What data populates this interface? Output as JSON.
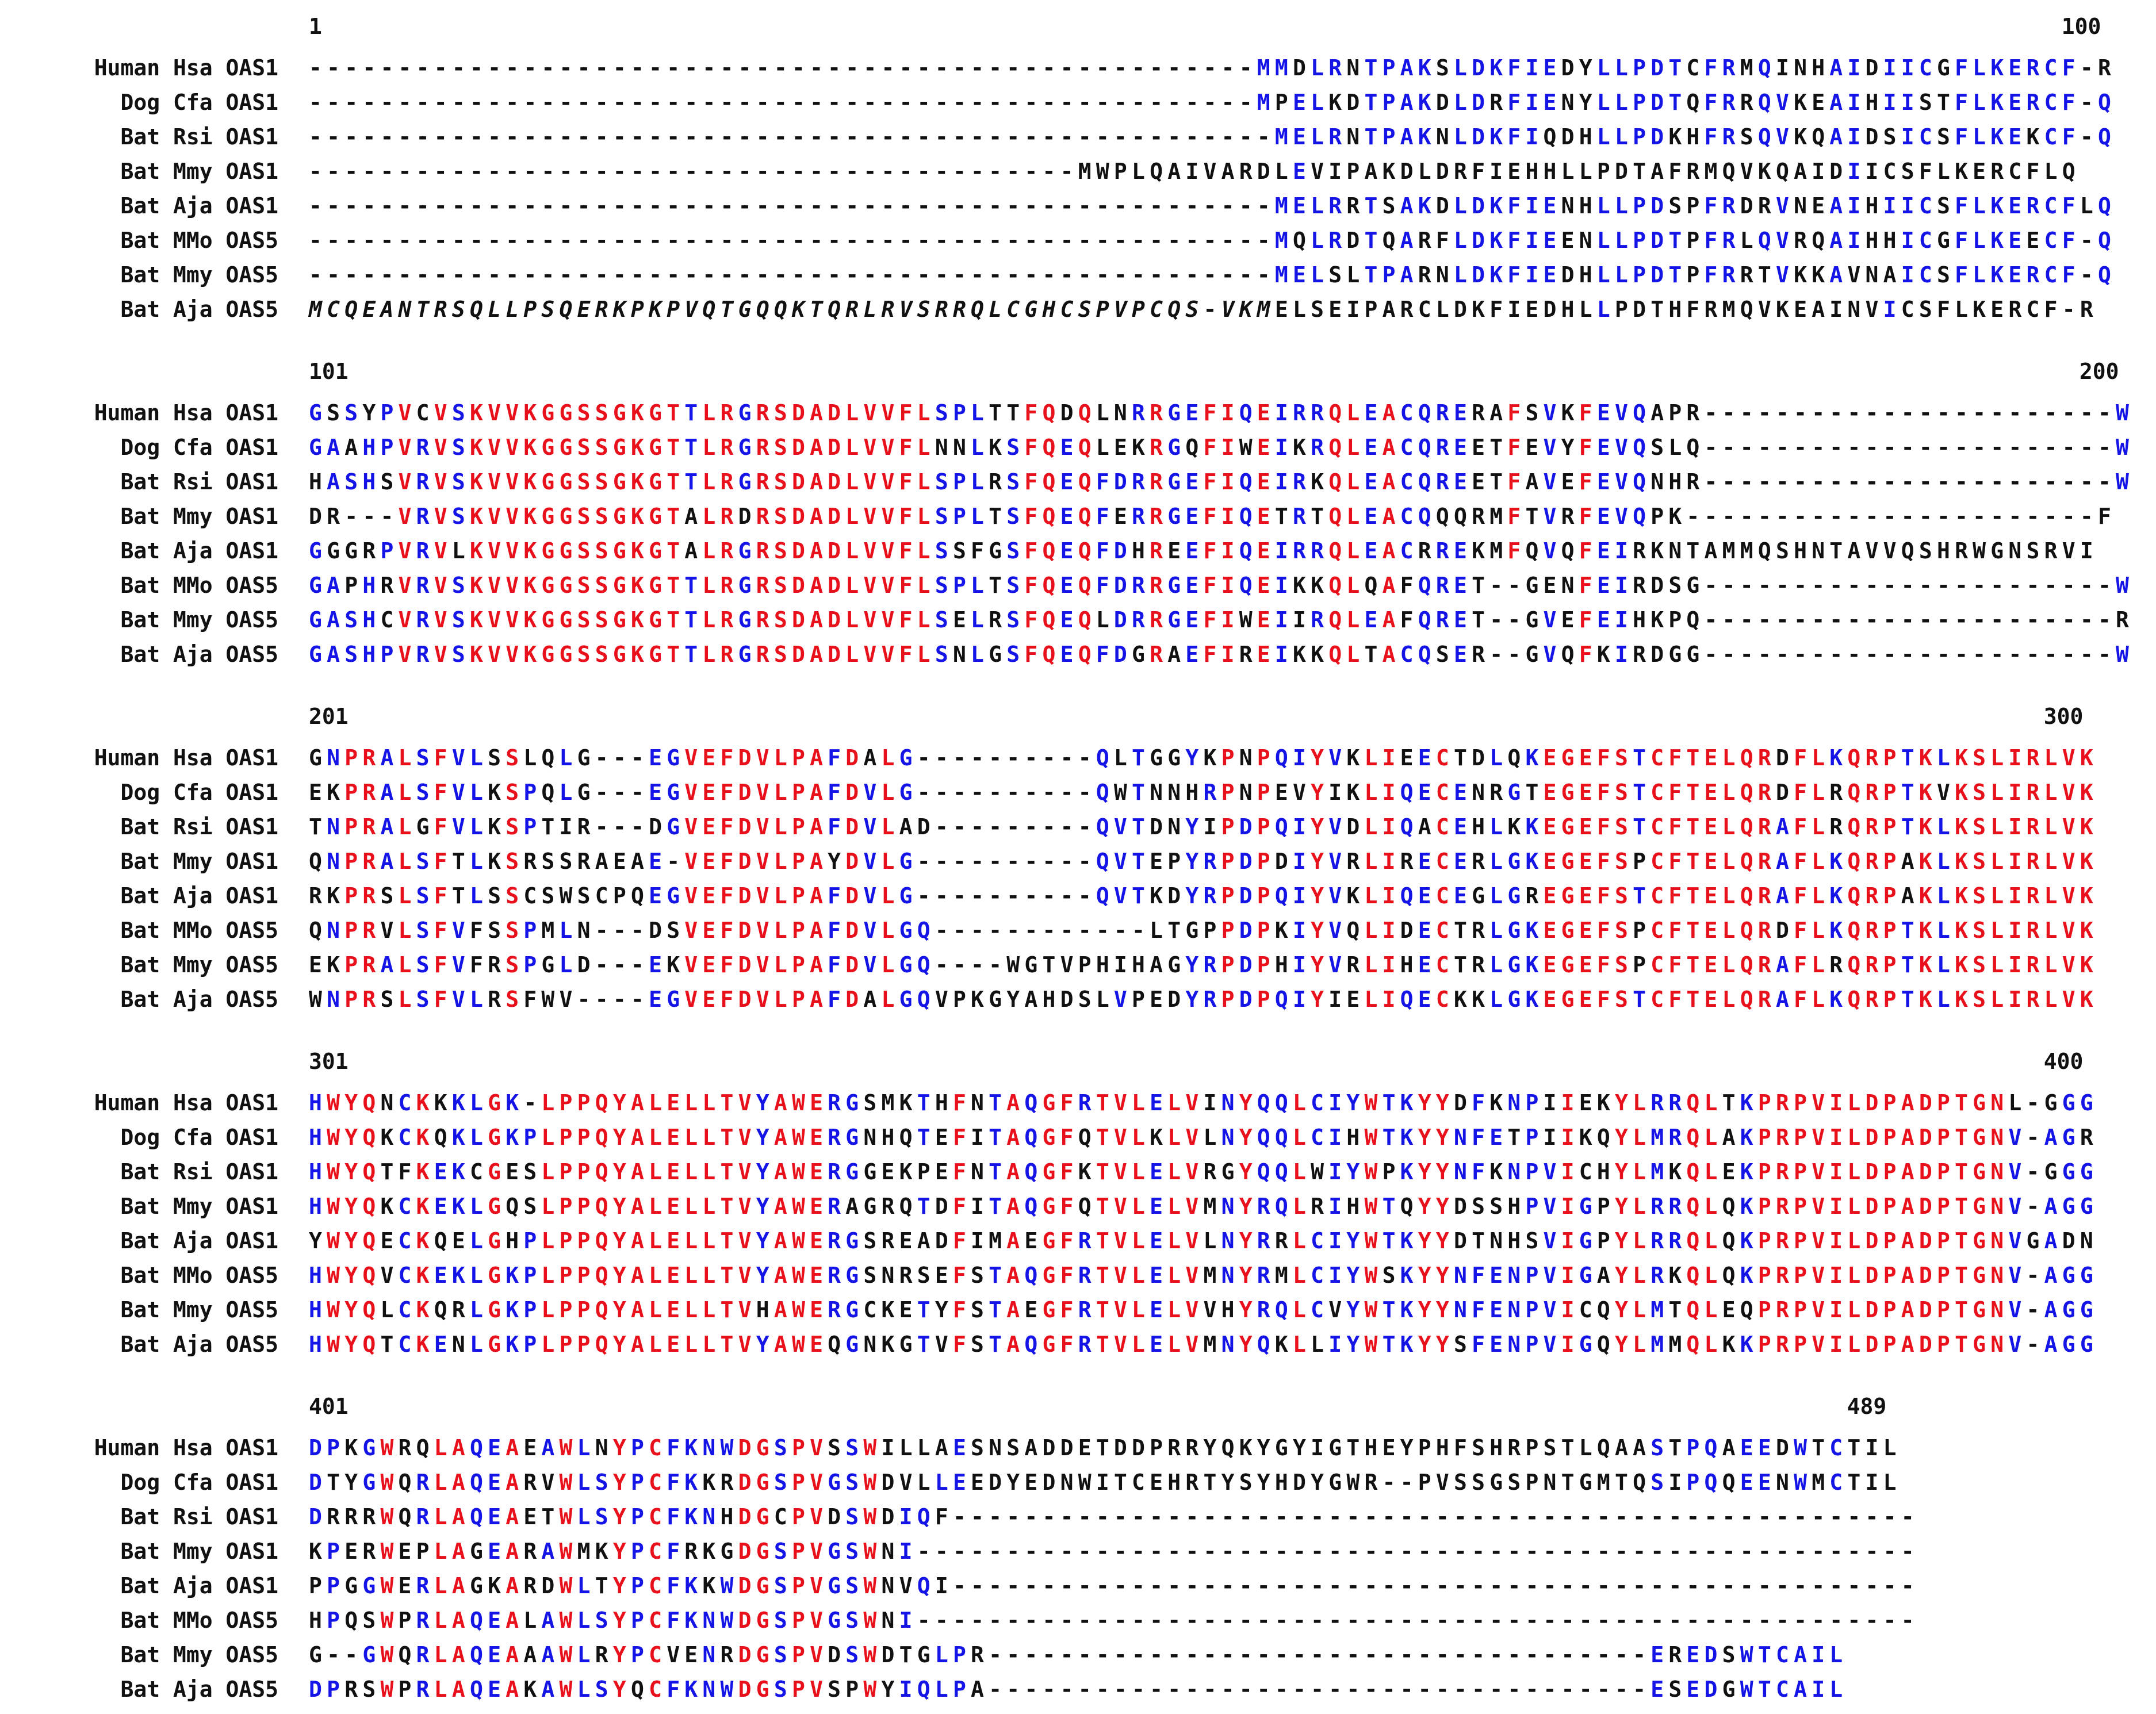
{
  "colors": {
    "identical": "#e8101a",
    "similar": "#1414e6",
    "other": "#111111"
  },
  "blocks": [
    {
      "start": "1",
      "end": "100",
      "rows": [
        {
          "label": "Human Hsa OAS1",
          "seq": "-----------------------------------------------------MMDLRNTPAKSLDKFIEDYLLPDTCFRMQINHAIDIICGFLKERCF-R"
        },
        {
          "label": "Dog Cfa OAS1",
          "seq": "-----------------------------------------------------MPELKDTPAKDLDRFIENYLLPDTQFRRQVKEAIHIISTFLKERCF-Q"
        },
        {
          "label": "Bat Rsi OAS1",
          "seq": "------------------------------------------------------MELRNTPAKNLDKFIQDHLLPDKHFRSQVKQAIDSICSFLKEKCF-Q"
        },
        {
          "label": "Bat Mmy OAS1",
          "seq": "-------------------------------------------MWPLQAIVARDLEVIPAKDLDRFIEHHLLPDTAFRMQVKQAIDIICSFLKERCFLQ"
        },
        {
          "label": "Bat Aja OAS1",
          "seq": "------------------------------------------------------MELRRTSAKDLDKFIENHLLPDSPFRDRVNEAIHIICSFLKERCFLQ"
        },
        {
          "label": "Bat MMo OAS5",
          "seq": "------------------------------------------------------MQLRDTQARFLDKFIEENLLPDTPFRLQVRQAIHHICGFLKEECF-Q"
        },
        {
          "label": "Bat Mmy OAS5",
          "seq": "------------------------------------------------------MELSLTPARNLDKFIEDHLLPDTPFRRTVKKAVNAICSFLKERCF-Q"
        },
        {
          "label": "Bat Aja OAS5",
          "seq": "MCQEANTRSQLLPSQERKPKPVQTGQQKTQRLRVSRRQLCGHCSPVPCQS-VKMELSEIPARCLDKFIEDHLLPDTHFRMQVKEAINVICSFLKERCF-R"
        }
      ]
    },
    {
      "start": "101",
      "end": "200",
      "rows": [
        {
          "label": "Human Hsa OAS1",
          "seq": "GSSYPVCVSKVVKGGSSGKGTTLRGRSDADLVVFLSPLTTFQDQLNRRGEFIQEIRRQLEACQRERAFSVKFEVQAPR-----------------------W"
        },
        {
          "label": "Dog Cfa OAS1",
          "seq": "GAAHPVRVSKVVKGGSSGKGTTLRGRSDADLVVFLNNLKSFQEQLEKRGQFIWEIKRQLEACQREETFEVYFEVQSLQ-----------------------W"
        },
        {
          "label": "Bat Rsi OAS1",
          "seq": "HASHSVRVSKVVKGGSSGKGTTLRGRSDADLVVFLSPLRSFQEQFDRRGEFIQEIRKQLEACQREETFAVEFEVQNHR-----------------------W"
        },
        {
          "label": "Bat Mmy OAS1",
          "seq": "DR---VRVSKVVKGGSSGKGTALRDRSDADLVVFLSPLTSFQEQFERRGEFIQETRTQLEACQQQRMFTVRFEVQPK-----------------------F"
        },
        {
          "label": "Bat Aja OAS1",
          "seq": "GGGRPVRVLKVVKGGSSGKGTALRGRSDADLVVFLSSFGSFQEQFDHREEFIQEIRRQLEACRREKMFQVQFEIRKNTAMMQSHNTAVVQSHRWGNSRVI"
        },
        {
          "label": "Bat MMo OAS5",
          "seq": "GAPHRVRVSKVVKGGSSGKGTTLRGRSDADLVVFLSPLTSFQEQFDRRGEFIQEIKKQLQAFQRET--GENFEIRDSG-----------------------W"
        },
        {
          "label": "Bat Mmy OAS5",
          "seq": "GASHCVRVSKVVKGGSSGKGTTLRGRSDADLVVFLSELRSFQEQLDRRGEFIWEIIRQLEAFQRET--GVEFEIHKPQ-----------------------R"
        },
        {
          "label": "Bat Aja OAS5",
          "seq": "GASHPVRVSKVVKGGSSGKGTTLRGRSDADLVVFLSNLGSFQEQFDGRAEFIREIKKQLTACQSER--GVQFKIRDGG-----------------------W"
        }
      ]
    },
    {
      "start": "201",
      "end": "300",
      "rows": [
        {
          "label": "Human Hsa OAS1",
          "seq": "GNPRALSFVLSSLQLG---EGVEFDVLPAFDALG----------QLTGGYKPNPQIYVKLIEECTDLQKEGEFSTCFTELQRDFLKQRPTKLKSLIRLVK"
        },
        {
          "label": "Dog Cfa OAS1",
          "seq": "EKPRALSFVLKSPQLG---EGVEFDVLPAFDVLG----------QWTNNHRPNPEVYIKLIQECENRGTEGEFSTCFTELQRDFLRQRPTKVKSLIRLVK"
        },
        {
          "label": "Bat Rsi OAS1",
          "seq": "TNPRALGFVLKSPTIR---DGVEFDVLPAFDVLAD---------QVTDNYIPDPQIYVDLIQACEHLKKEGEFSTCFTELQRAFLRQRPTKLKSLIRLVK"
        },
        {
          "label": "Bat Mmy OAS1",
          "seq": "QNPRALSFTLKSRSSRAEAE-VEFDVLPAYDVLG----------QVTEPYRPDPDIYVRLIRECERLGKEGEFSPCFTELQRAFLKQRPAKLKSLIRLVK"
        },
        {
          "label": "Bat Aja OAS1",
          "seq": "RKPRSLSFTLSSCSWSCPQEGVEFDVLPAFDVLG----------QVTKDYRPDPQIYVKLIQECEGLGREGEFSTCFTELQRAFLKQRPAKLKSLIRLVK"
        },
        {
          "label": "Bat MMo OAS5",
          "seq": "QNPRVLSFVFSSPMLN---DSVEFDVLPAFDVLGQ------------LTGPPDPKIYVQLIDECTRLGKEGEFSPCFTELQRDFLKQRPTKLKSLIRLVK"
        },
        {
          "label": "Bat Mmy OAS5",
          "seq": "EKPRALSFVFRSPGLD---EKVEFDVLPAFDVLGQ----WGTVPHIHAGYRPDPHIYVRLIHECTRLGKEGEFSPCFTELQRAFLRQRPTKLKSLIRLVK"
        },
        {
          "label": "Bat Aja OAS5",
          "seq": "WNPRSLSFVLRSFWV----EGVEFDVLPAFDALGQVPKGYAHDSLVPEDYRPDPQIYIELIQECKKLGKEGEFSTCFTELQRAFLKQRPTKLKSLIRLVK"
        }
      ]
    },
    {
      "start": "301",
      "end": "400",
      "rows": [
        {
          "label": "Human Hsa OAS1",
          "seq": "HWYQNCKKKLGK-LPPQYALELLTVYAWERGSMKTHFNTAQGFRTVLELVINYQQLCIYWTKYYDFKNPIIEKYLRRQLTKPRPVILDPADPTGNL-GGG"
        },
        {
          "label": "Dog Cfa OAS1",
          "seq": "HWYQKCKQKLGKPLPPQYALELLTVYAWERGNHQTEFITAQGFQTVLKLVLNYQQLCIHWTKYYNFETPIIKQYLMRQLAKPRPVILDPADPTGNV-AGR"
        },
        {
          "label": "Bat Rsi OAS1",
          "seq": "HWYQTFKEKCGESLPPQYALELLTVYAWERGGEKPEFNTAQGFKTVLELVRGYQQLWIYWPKYYNFKNPVICHYLMKQLEKPRPVILDPADPTGNV-GGG"
        },
        {
          "label": "Bat Mmy OAS1",
          "seq": "HWYQKCKEKLGQSLPPQYALELLTVYAWERAGRQTDFITAQGFQTVLELVMNYRQLRIHWTQYYDSSHPVIGPYLRRQLQKPRPVILDPADPTGNV-AGG"
        },
        {
          "label": "Bat Aja OAS1",
          "seq": "YWYQECKQELGHPLPPQYALELLTVYAWERGSREADFIMAEGFRTVLELVLNYRRLCIYWTKYYDTNHSVIGPYLRRQLQKPRPVILDPADPTGNVGADN"
        },
        {
          "label": "Bat MMo OAS5",
          "seq": "HWYQVCKEKLGKPLPPQYALELLTVYAWERGSNRSEFSTAQGFRTVLELVMNYRMLCIYWSKYYNFENPVIGAYLRKQLQKPRPVILDPADPTGNV-AGG"
        },
        {
          "label": "Bat Mmy OAS5",
          "seq": "HWYQLCKQRLGKPLPPQYALELLTVHAWERGCKETYFSTAEGFRTVLELVVHYRQLCVYWTKYYNFENPVICQYLMTQLEQPRPVILDPADPTGNV-AGG"
        },
        {
          "label": "Bat Aja OAS5",
          "seq": "HWYQTCKENLGKPLPPQYALELLTVYAWEQGNKGTVFSTAQGFRTVLELVMNYQKLLIYWTKYYSFENPVIGQYLMMQLKKPRPVILDPADPTGNV-AGG"
        }
      ]
    },
    {
      "start": "401",
      "end": "489",
      "rows": [
        {
          "label": "Human Hsa OAS1",
          "seq": "DPKGWRQLAQEAEAWLNYPCFKNWDGSPVSSWILLAESNSADDETDDPRRYQKYGYIGTHEYPHFSHRPSTLQAASTPQAEEDWTCTIL"
        },
        {
          "label": "Dog Cfa OAS1",
          "seq": "DTYGWQRLAQEARVWLSYPCFKKRDGSPVGSWDVLLEEDYEDNWITCEHRTYSYHDYGWR--PVSSGSPNTGMTQSIPQQEENWMCTIL"
        },
        {
          "label": "Bat Rsi OAS1",
          "seq": "DRRRWQRLAQEAETWLSYPCFKNHDGCPVDSWDIQF------------------------------------------------------"
        },
        {
          "label": "Bat Mmy OAS1",
          "seq": "KPERWEPLAGEARAWMKYPCFRKGDGSPVGSWNI--------------------------------------------------------"
        },
        {
          "label": "Bat Aja OAS1",
          "seq": "PPGGWERLAGKARDWLTYPCFKKWDGSPVGSWNVQI------------------------------------------------------"
        },
        {
          "label": "Bat MMo OAS5",
          "seq": "HPQSWPRLAQEALAWLSYPCFKNWDGSPVGSWNI--------------------------------------------------------"
        },
        {
          "label": "Bat Mmy OAS5",
          "seq": "G--GWQRLAQEAAAWLRYPCVENRDGSPVDSWDTGLPR-------------------------------------EREDSWTCAIL"
        },
        {
          "label": "Bat Aja OAS5",
          "seq": "DPRSWPRLAQEAKAWLSYQCFKNWDGSPVSPWYIQLPA-------------------------------------ESEDGWTCAIL"
        }
      ]
    }
  ]
}
